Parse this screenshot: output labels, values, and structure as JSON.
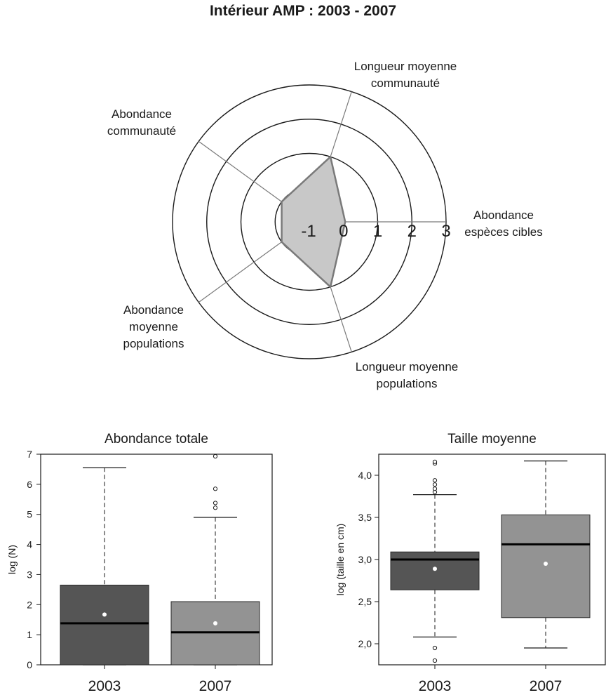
{
  "figure": {
    "title": "Intérieur AMP : 2003 - 2007"
  },
  "chart_data": [
    {
      "type": "radar",
      "axes": [
        [
          "Abondance",
          "espèces cibles"
        ],
        [
          "Longueur moyenne",
          "communauté"
        ],
        [
          "Abondance",
          "communauté"
        ],
        [
          "Abondance",
          "moyenne",
          "populations"
        ],
        [
          "Longueur moyenne",
          "populations"
        ]
      ],
      "ring_values": [
        0,
        1,
        2,
        3
      ],
      "tick_labels": [
        "-1",
        "0",
        "1",
        "2",
        "3"
      ],
      "range": [
        -1,
        3
      ],
      "values": [
        0.05,
        1.0,
        0.0,
        0.0,
        1.0
      ],
      "colors": {
        "fill": "#c8c8c8",
        "stroke": "#7a7a7a"
      }
    },
    {
      "type": "box",
      "title": "Abondance totale",
      "xlabel": "",
      "ylabel": "log (N)",
      "ylim": [
        0,
        7
      ],
      "yticks": [
        "0",
        "1",
        "2",
        "3",
        "4",
        "5",
        "6",
        "7"
      ],
      "categories": [
        "2003",
        "2007"
      ],
      "boxes": [
        {
          "whisker_low": 0,
          "q1": 0,
          "median": 1.38,
          "q3": 2.65,
          "whisker_high": 6.55,
          "mean": 1.67,
          "outliers": [],
          "color": "#555555"
        },
        {
          "whisker_low": 0,
          "q1": 0,
          "median": 1.08,
          "q3": 2.1,
          "whisker_high": 4.9,
          "mean": 1.38,
          "outliers": [
            5.22,
            5.38,
            5.85,
            6.93
          ],
          "color": "#939393"
        }
      ]
    },
    {
      "type": "box",
      "title": "Taille moyenne",
      "xlabel": "",
      "ylabel": "log (taille en cm)",
      "ylim": [
        1.75,
        4.25
      ],
      "yticks": [
        "2,0",
        "2,5",
        "3,0",
        "3,5",
        "4,0"
      ],
      "categories": [
        "2003",
        "2007"
      ],
      "boxes": [
        {
          "whisker_low": 2.08,
          "q1": 2.64,
          "median": 3.0,
          "q3": 3.09,
          "whisker_high": 3.77,
          "mean": 2.89,
          "outliers": [
            1.8,
            1.95,
            3.8,
            3.84,
            3.89,
            3.94,
            4.14,
            4.16
          ],
          "color": "#555555"
        },
        {
          "whisker_low": 1.95,
          "q1": 2.31,
          "median": 3.18,
          "q3": 3.53,
          "whisker_high": 4.17,
          "mean": 2.95,
          "outliers": [],
          "color": "#939393"
        }
      ]
    }
  ]
}
